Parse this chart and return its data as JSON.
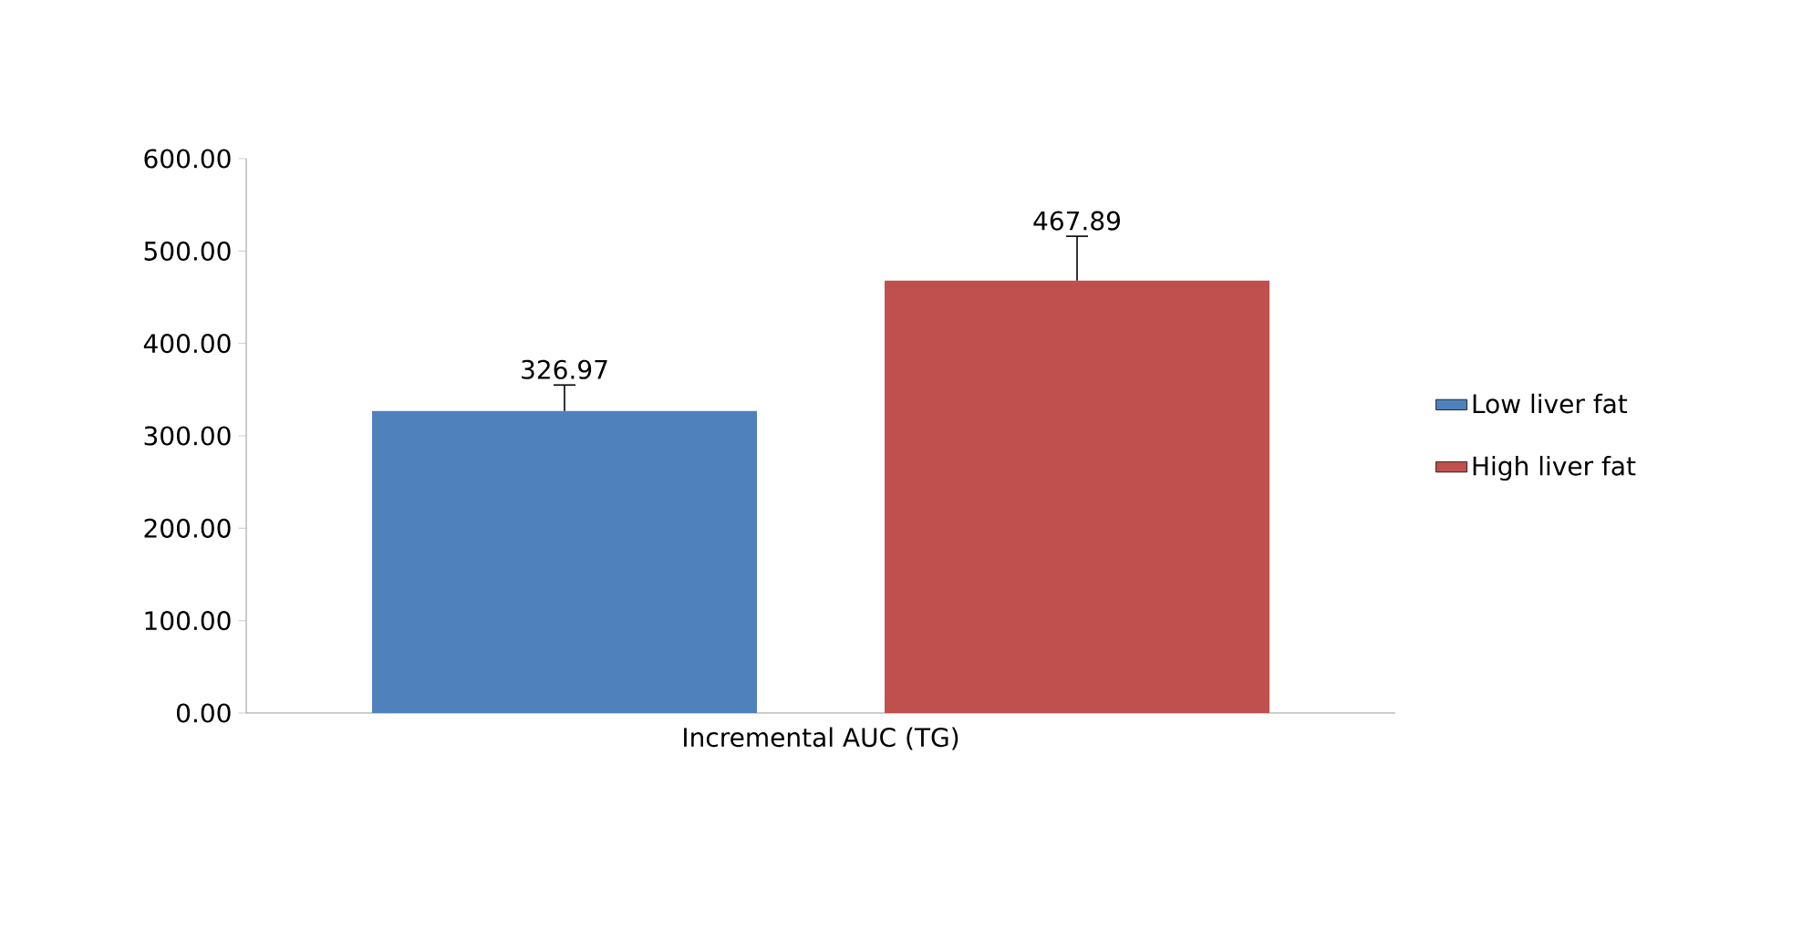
{
  "chart_data": {
    "type": "bar",
    "categories": [
      "Incremental AUC (TG)"
    ],
    "series": [
      {
        "name": "Low liver fat",
        "color": "#4f81bd",
        "values": [
          326.97
        ],
        "errors": [
          [
            326.97,
            355
          ]
        ]
      },
      {
        "name": "High liver fat",
        "color": "#c0504d",
        "values": [
          467.89
        ],
        "errors": [
          [
            467.89,
            516
          ]
        ]
      }
    ],
    "ylim": [
      0,
      600
    ],
    "yticks": [
      {
        "value": 0,
        "label": "0.00"
      },
      {
        "value": 100,
        "label": "100.00"
      },
      {
        "value": 200,
        "label": "200.00"
      },
      {
        "value": 300,
        "label": "300.00"
      },
      {
        "value": 400,
        "label": "400.00"
      },
      {
        "value": 500,
        "label": "500.00"
      },
      {
        "value": 600,
        "label": "600.00"
      }
    ],
    "data_labels": true,
    "grid": false,
    "legend": "right"
  }
}
